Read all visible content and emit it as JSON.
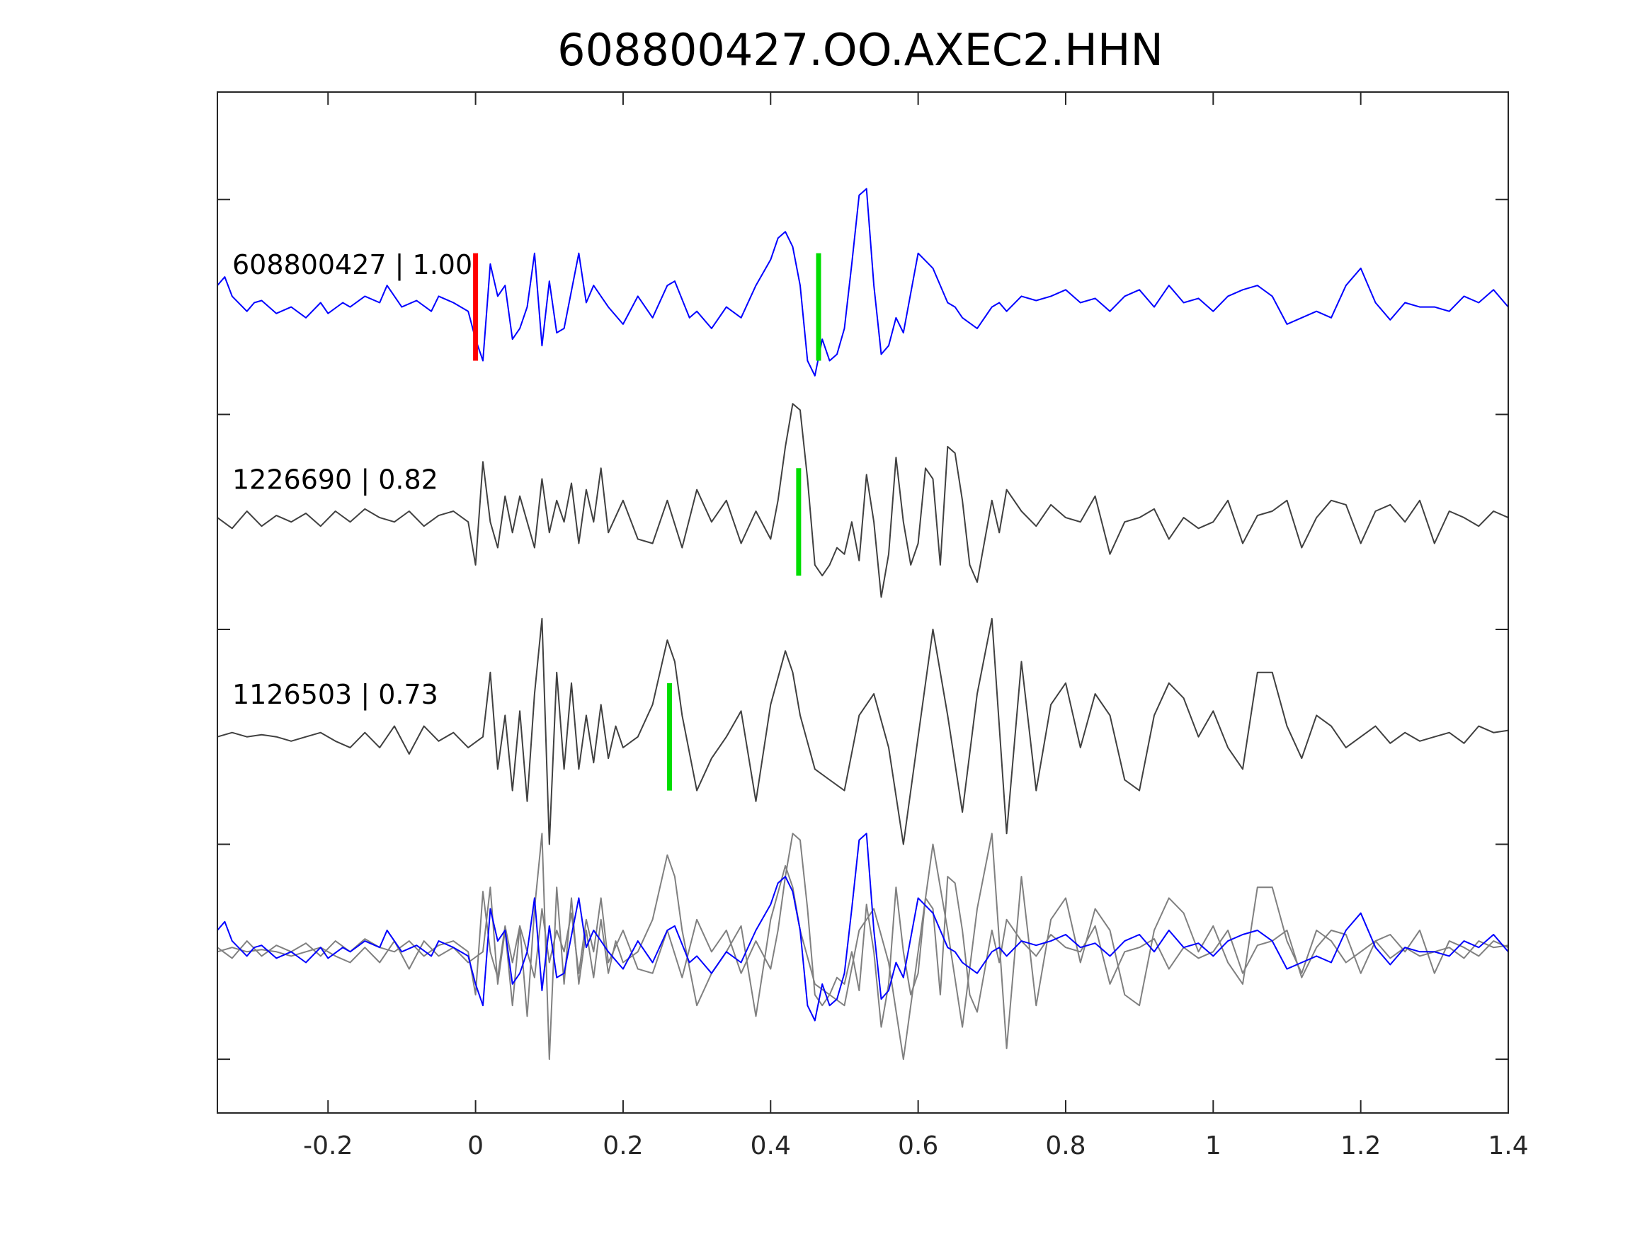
{
  "chart_data": {
    "type": "line",
    "title": "608800427.OO.AXEC2.HHN",
    "xlabel": "",
    "ylabel": "",
    "xlim": [
      -0.35,
      1.4
    ],
    "ylim": [
      0,
      4.75
    ],
    "x_ticks": [
      "-0.2",
      "0",
      "0.2",
      "0.4",
      "0.6",
      "0.8",
      "1",
      "1.2",
      "1.4"
    ],
    "x_tick_values": [
      -0.2,
      0,
      0.2,
      0.4,
      0.6,
      0.8,
      1,
      1.2,
      1.4
    ],
    "y_tick_values": [
      0.25,
      1.25,
      2.25,
      3.25,
      4.25
    ],
    "grid": false,
    "colors": {
      "template": "#0000ff",
      "match": "#404040",
      "overlay_gray": "#808080",
      "pick_red": "#ff0000",
      "pick_green": "#00dd00",
      "axis": "#262626"
    },
    "traces": [
      {
        "label": "608800427 | 1.00",
        "offset": 3.75,
        "color": "#0000ff",
        "x": [
          -0.35,
          -0.34,
          -0.33,
          -0.31,
          -0.3,
          -0.29,
          -0.27,
          -0.25,
          -0.23,
          -0.21,
          -0.2,
          -0.18,
          -0.17,
          -0.15,
          -0.13,
          -0.12,
          -0.1,
          -0.08,
          -0.06,
          -0.05,
          -0.03,
          -0.01,
          0.0,
          0.01,
          0.02,
          0.03,
          0.04,
          0.05,
          0.06,
          0.07,
          0.08,
          0.09,
          0.1,
          0.11,
          0.12,
          0.14,
          0.15,
          0.16,
          0.17,
          0.18,
          0.2,
          0.22,
          0.24,
          0.26,
          0.27,
          0.29,
          0.3,
          0.32,
          0.34,
          0.36,
          0.38,
          0.4,
          0.41,
          0.42,
          0.43,
          0.44,
          0.45,
          0.46,
          0.47,
          0.48,
          0.49,
          0.5,
          0.51,
          0.52,
          0.53,
          0.54,
          0.55,
          0.56,
          0.57,
          0.58,
          0.6,
          0.62,
          0.64,
          0.65,
          0.66,
          0.68,
          0.7,
          0.71,
          0.72,
          0.74,
          0.76,
          0.78,
          0.8,
          0.82,
          0.84,
          0.86,
          0.88,
          0.9,
          0.92,
          0.94,
          0.96,
          0.98,
          1.0,
          1.02,
          1.04,
          1.06,
          1.08,
          1.1,
          1.12,
          1.14,
          1.16,
          1.18,
          1.2,
          1.22,
          1.24,
          1.26,
          1.28,
          1.3,
          1.32,
          1.34,
          1.36,
          1.38,
          1.4
        ],
        "y": [
          0.1,
          0.14,
          0.05,
          -0.02,
          0.02,
          0.03,
          -0.03,
          0.0,
          -0.05,
          0.02,
          -0.03,
          0.02,
          0.0,
          0.05,
          0.02,
          0.1,
          0.0,
          0.03,
          -0.02,
          0.05,
          0.02,
          -0.02,
          -0.15,
          -0.25,
          0.2,
          0.05,
          0.1,
          -0.15,
          -0.1,
          0.0,
          0.25,
          -0.18,
          0.12,
          -0.12,
          -0.1,
          0.25,
          0.02,
          0.1,
          0.05,
          0.0,
          -0.08,
          0.05,
          -0.05,
          0.1,
          0.12,
          -0.05,
          -0.02,
          -0.1,
          0.0,
          -0.05,
          0.1,
          0.22,
          0.32,
          0.35,
          0.28,
          0.1,
          -0.25,
          -0.32,
          -0.15,
          -0.25,
          -0.22,
          -0.1,
          0.2,
          0.52,
          0.55,
          0.1,
          -0.22,
          -0.18,
          -0.05,
          -0.12,
          0.25,
          0.18,
          0.02,
          0.0,
          -0.05,
          -0.1,
          0.0,
          0.02,
          -0.02,
          0.05,
          0.03,
          0.05,
          0.08,
          0.02,
          0.04,
          -0.02,
          0.05,
          0.08,
          0.0,
          0.1,
          0.02,
          0.04,
          -0.02,
          0.05,
          0.08,
          0.1,
          0.05,
          -0.08,
          -0.05,
          -0.02,
          -0.05,
          0.1,
          0.18,
          0.02,
          -0.06,
          0.02,
          0.0,
          0.0,
          -0.02,
          0.05,
          0.02,
          0.08,
          0.0
        ]
      },
      {
        "label": "1226690 | 0.82",
        "offset": 2.75,
        "color": "#404040",
        "x": [
          -0.35,
          -0.33,
          -0.31,
          -0.29,
          -0.27,
          -0.25,
          -0.23,
          -0.21,
          -0.19,
          -0.17,
          -0.15,
          -0.13,
          -0.11,
          -0.09,
          -0.07,
          -0.05,
          -0.03,
          -0.01,
          0.0,
          0.01,
          0.02,
          0.03,
          0.04,
          0.05,
          0.06,
          0.07,
          0.08,
          0.09,
          0.1,
          0.11,
          0.12,
          0.13,
          0.14,
          0.15,
          0.16,
          0.17,
          0.18,
          0.2,
          0.22,
          0.24,
          0.26,
          0.28,
          0.3,
          0.32,
          0.34,
          0.36,
          0.38,
          0.4,
          0.41,
          0.42,
          0.43,
          0.44,
          0.45,
          0.46,
          0.47,
          0.48,
          0.49,
          0.5,
          0.51,
          0.52,
          0.53,
          0.54,
          0.55,
          0.56,
          0.57,
          0.58,
          0.59,
          0.6,
          0.61,
          0.62,
          0.63,
          0.64,
          0.65,
          0.66,
          0.67,
          0.68,
          0.7,
          0.71,
          0.72,
          0.74,
          0.76,
          0.78,
          0.8,
          0.82,
          0.84,
          0.86,
          0.88,
          0.9,
          0.92,
          0.94,
          0.96,
          0.98,
          1.0,
          1.02,
          1.04,
          1.06,
          1.08,
          1.1,
          1.12,
          1.14,
          1.16,
          1.18,
          1.2,
          1.22,
          1.24,
          1.26,
          1.28,
          1.3,
          1.32,
          1.34,
          1.36,
          1.38,
          1.4
        ],
        "y": [
          0.02,
          -0.03,
          0.05,
          -0.02,
          0.03,
          0.0,
          0.04,
          -0.02,
          0.05,
          0.0,
          0.06,
          0.02,
          0.0,
          0.05,
          -0.02,
          0.03,
          0.05,
          0.0,
          -0.2,
          0.28,
          0.0,
          -0.12,
          0.12,
          -0.05,
          0.12,
          0.0,
          -0.12,
          0.2,
          -0.05,
          0.1,
          0.0,
          0.18,
          -0.1,
          0.15,
          0.0,
          0.25,
          -0.05,
          0.1,
          -0.08,
          -0.1,
          0.1,
          -0.12,
          0.15,
          0.0,
          0.1,
          -0.1,
          0.05,
          -0.08,
          0.1,
          0.35,
          0.55,
          0.52,
          0.2,
          -0.2,
          -0.25,
          -0.2,
          -0.12,
          -0.15,
          0.0,
          -0.18,
          0.22,
          0.0,
          -0.35,
          -0.15,
          0.3,
          0.0,
          -0.2,
          -0.1,
          0.25,
          0.2,
          -0.2,
          0.35,
          0.32,
          0.1,
          -0.2,
          -0.28,
          0.1,
          -0.05,
          0.15,
          0.05,
          -0.02,
          0.08,
          0.02,
          0.0,
          0.12,
          -0.15,
          0.0,
          0.02,
          0.06,
          -0.08,
          0.02,
          -0.03,
          0.0,
          0.1,
          -0.1,
          0.03,
          0.05,
          0.1,
          -0.12,
          0.02,
          0.1,
          0.08,
          -0.1,
          0.05,
          0.08,
          0.0,
          0.1,
          -0.1,
          0.05,
          0.02,
          -0.02,
          0.05,
          0.02
        ]
      },
      {
        "label": "1126503 | 0.73",
        "offset": 1.75,
        "color": "#404040",
        "x": [
          -0.35,
          -0.33,
          -0.31,
          -0.29,
          -0.27,
          -0.25,
          -0.23,
          -0.21,
          -0.19,
          -0.17,
          -0.15,
          -0.13,
          -0.11,
          -0.09,
          -0.07,
          -0.05,
          -0.03,
          -0.01,
          0.01,
          0.02,
          0.03,
          0.04,
          0.05,
          0.06,
          0.07,
          0.08,
          0.09,
          0.1,
          0.11,
          0.12,
          0.13,
          0.14,
          0.15,
          0.16,
          0.17,
          0.18,
          0.19,
          0.2,
          0.22,
          0.24,
          0.26,
          0.27,
          0.28,
          0.3,
          0.32,
          0.34,
          0.36,
          0.38,
          0.4,
          0.42,
          0.43,
          0.44,
          0.46,
          0.48,
          0.5,
          0.52,
          0.54,
          0.56,
          0.58,
          0.6,
          0.62,
          0.64,
          0.66,
          0.68,
          0.7,
          0.72,
          0.74,
          0.76,
          0.78,
          0.8,
          0.82,
          0.84,
          0.86,
          0.88,
          0.9,
          0.92,
          0.94,
          0.96,
          0.98,
          1.0,
          1.02,
          1.04,
          1.06,
          1.08,
          1.1,
          1.12,
          1.14,
          1.16,
          1.18,
          1.2,
          1.22,
          1.24,
          1.26,
          1.28,
          1.3,
          1.32,
          1.34,
          1.36,
          1.38,
          1.4
        ],
        "y": [
          0.0,
          0.02,
          0.0,
          0.01,
          0.0,
          -0.02,
          0.0,
          0.02,
          -0.02,
          -0.05,
          0.02,
          -0.05,
          0.05,
          -0.08,
          0.05,
          -0.02,
          0.02,
          -0.05,
          0.0,
          0.3,
          -0.15,
          0.1,
          -0.25,
          0.12,
          -0.3,
          0.2,
          0.55,
          -0.5,
          0.3,
          -0.15,
          0.25,
          -0.15,
          0.1,
          -0.12,
          0.15,
          -0.1,
          0.05,
          -0.05,
          0.0,
          0.15,
          0.45,
          0.35,
          0.1,
          -0.25,
          -0.1,
          0.0,
          0.12,
          -0.3,
          0.15,
          0.4,
          0.3,
          0.1,
          -0.15,
          -0.2,
          -0.25,
          0.1,
          0.2,
          -0.05,
          -0.5,
          0.0,
          0.5,
          0.1,
          -0.35,
          0.2,
          0.55,
          -0.45,
          0.35,
          -0.25,
          0.15,
          0.25,
          -0.05,
          0.2,
          0.1,
          -0.2,
          -0.25,
          0.1,
          0.25,
          0.18,
          0.0,
          0.12,
          -0.05,
          -0.15,
          0.3,
          0.3,
          0.05,
          -0.1,
          0.1,
          0.05,
          -0.05,
          0.0,
          0.05,
          -0.03,
          0.02,
          -0.02,
          0.0,
          0.02,
          -0.03,
          0.05,
          0.02,
          0.03
        ]
      }
    ],
    "overlay": {
      "offset": 0.75,
      "note": "three traces overlaid: template in blue, matches in gray"
    },
    "picks": [
      {
        "trace": 0,
        "x": 0.0,
        "color": "#ff0000"
      },
      {
        "trace": 0,
        "x": 0.465,
        "color": "#00dd00"
      },
      {
        "trace": 1,
        "x": 0.438,
        "color": "#00dd00"
      },
      {
        "trace": 2,
        "x": 0.263,
        "color": "#00dd00"
      }
    ]
  }
}
